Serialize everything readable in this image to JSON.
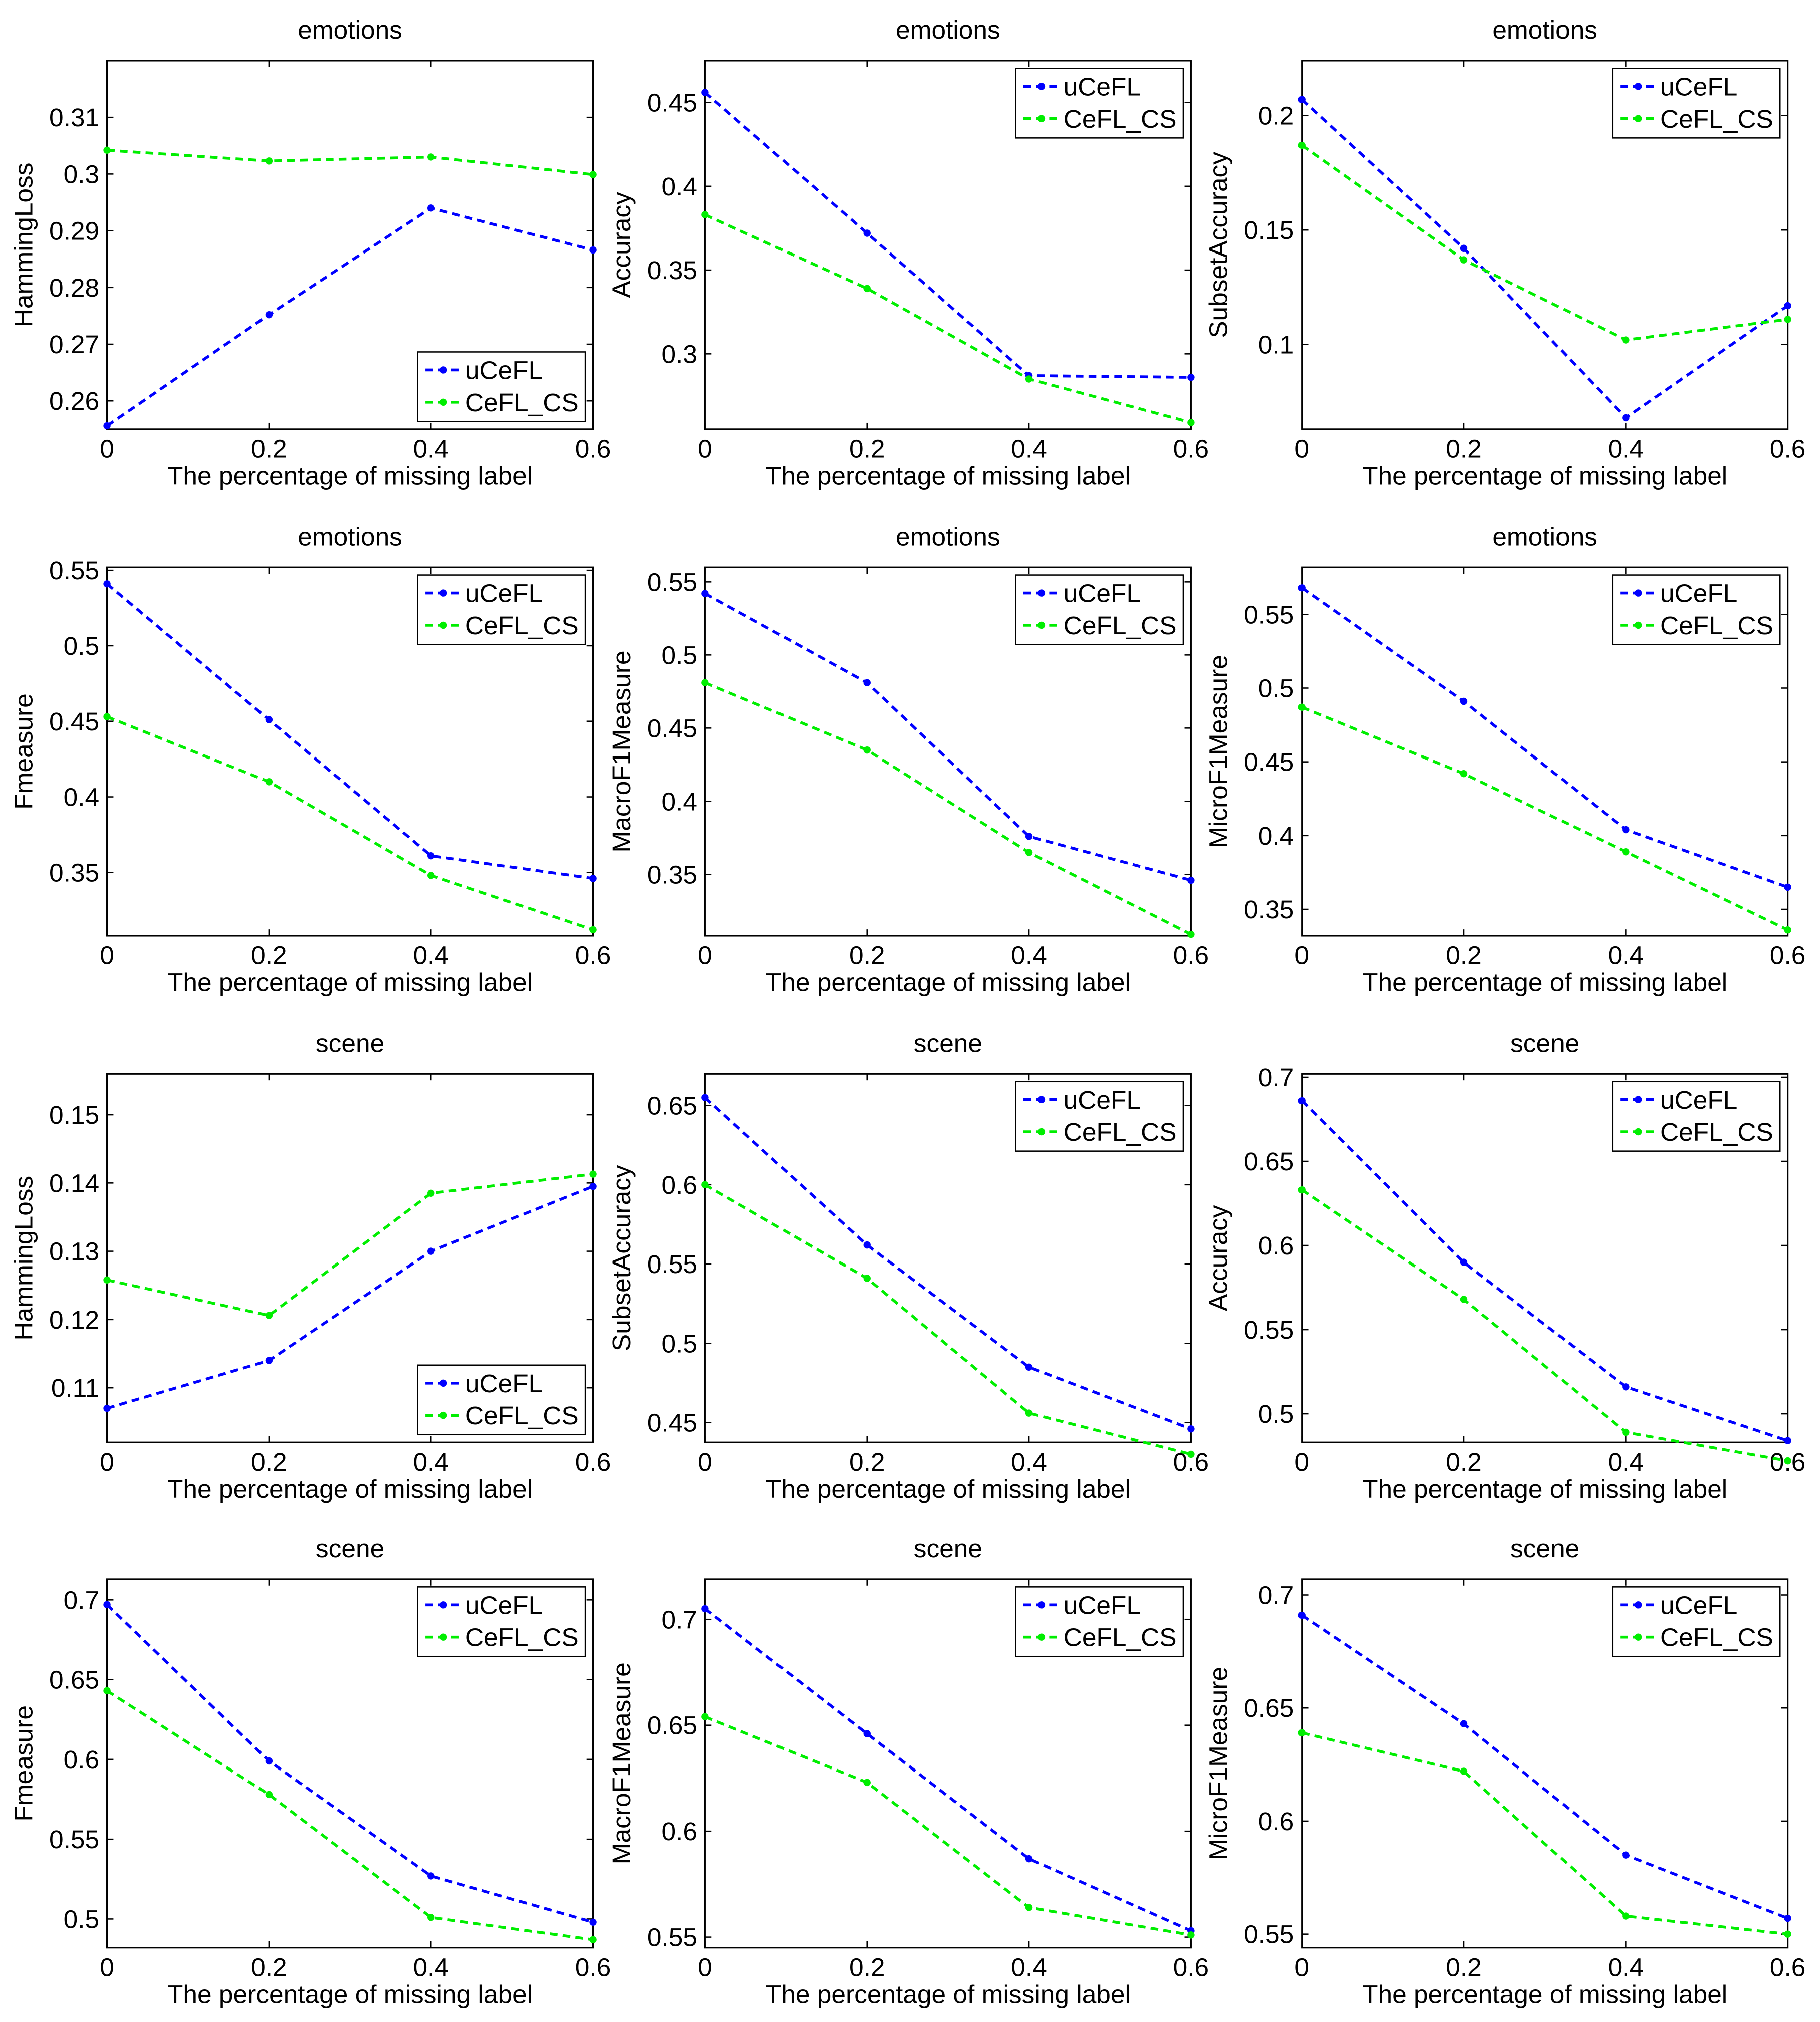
{
  "chart_data": [
    {
      "type": "line",
      "title": "emotions",
      "xlabel": "The percentage of missing label",
      "ylabel": "HammingLoss",
      "x": [
        0,
        0.2,
        0.4,
        0.6
      ],
      "xlim": [
        0,
        0.6
      ],
      "xticks": [
        0,
        0.2,
        0.4,
        0.6
      ],
      "ylim": [
        0.255,
        0.32
      ],
      "yticks": [
        0.26,
        0.27,
        0.28,
        0.29,
        0.3,
        0.31
      ],
      "legend": "lower right",
      "series": [
        {
          "name": "uCeFL",
          "color": "#0000ff",
          "values": [
            0.2556,
            0.2752,
            0.294,
            0.2866
          ]
        },
        {
          "name": "CeFL_CS",
          "color": "#00ee00",
          "values": [
            0.3042,
            0.3023,
            0.303,
            0.2999
          ]
        }
      ]
    },
    {
      "type": "line",
      "title": "emotions",
      "xlabel": "The percentage of missing label",
      "ylabel": "Accuracy",
      "x": [
        0,
        0.2,
        0.4,
        0.6
      ],
      "xlim": [
        0,
        0.6
      ],
      "xticks": [
        0,
        0.2,
        0.4,
        0.6
      ],
      "ylim": [
        0.255,
        0.475
      ],
      "yticks": [
        0.3,
        0.35,
        0.4,
        0.45
      ],
      "legend": "upper right",
      "series": [
        {
          "name": "uCeFL",
          "color": "#0000ff",
          "values": [
            0.456,
            0.372,
            0.287,
            0.286
          ]
        },
        {
          "name": "CeFL_CS",
          "color": "#00ee00",
          "values": [
            0.383,
            0.339,
            0.285,
            0.259
          ]
        }
      ]
    },
    {
      "type": "line",
      "title": "emotions",
      "xlabel": "The percentage of missing label",
      "ylabel": "SubsetAccuracy",
      "x": [
        0,
        0.2,
        0.4,
        0.6
      ],
      "xlim": [
        0,
        0.6
      ],
      "xticks": [
        0,
        0.2,
        0.4,
        0.6
      ],
      "ylim": [
        0.063,
        0.224
      ],
      "yticks": [
        0.1,
        0.15,
        0.2
      ],
      "legend": "upper right",
      "series": [
        {
          "name": "uCeFL",
          "color": "#0000ff",
          "values": [
            0.207,
            0.142,
            0.068,
            0.117
          ]
        },
        {
          "name": "CeFL_CS",
          "color": "#00ee00",
          "values": [
            0.187,
            0.137,
            0.102,
            0.111
          ]
        }
      ]
    },
    {
      "type": "line",
      "title": "emotions",
      "xlabel": "The percentage of missing label",
      "ylabel": "Fmeasure",
      "x": [
        0,
        0.2,
        0.4,
        0.6
      ],
      "xlim": [
        0,
        0.6
      ],
      "xticks": [
        0,
        0.2,
        0.4,
        0.6
      ],
      "ylim": [
        0.308,
        0.552
      ],
      "yticks": [
        0.35,
        0.4,
        0.45,
        0.5,
        0.55
      ],
      "legend": "upper right",
      "series": [
        {
          "name": "uCeFL",
          "color": "#0000ff",
          "values": [
            0.541,
            0.451,
            0.361,
            0.346
          ]
        },
        {
          "name": "CeFL_CS",
          "color": "#00ee00",
          "values": [
            0.453,
            0.41,
            0.348,
            0.312
          ]
        }
      ]
    },
    {
      "type": "line",
      "title": "emotions",
      "xlabel": "The percentage of missing label",
      "ylabel": "MacroF1Measure",
      "x": [
        0,
        0.2,
        0.4,
        0.6
      ],
      "xlim": [
        0,
        0.6
      ],
      "xticks": [
        0,
        0.2,
        0.4,
        0.6
      ],
      "ylim": [
        0.308,
        0.56
      ],
      "yticks": [
        0.35,
        0.4,
        0.45,
        0.5,
        0.55
      ],
      "legend": "upper right",
      "series": [
        {
          "name": "uCeFL",
          "color": "#0000ff",
          "values": [
            0.542,
            0.481,
            0.376,
            0.346
          ]
        },
        {
          "name": "CeFL_CS",
          "color": "#00ee00",
          "values": [
            0.481,
            0.435,
            0.365,
            0.309
          ]
        }
      ]
    },
    {
      "type": "line",
      "title": "emotions",
      "xlabel": "The percentage of missing label",
      "ylabel": "MicroF1Measure",
      "x": [
        0,
        0.2,
        0.4,
        0.6
      ],
      "xlim": [
        0,
        0.6
      ],
      "xticks": [
        0,
        0.2,
        0.4,
        0.6
      ],
      "ylim": [
        0.332,
        0.582
      ],
      "yticks": [
        0.35,
        0.4,
        0.45,
        0.5,
        0.55
      ],
      "legend": "upper right",
      "series": [
        {
          "name": "uCeFL",
          "color": "#0000ff",
          "values": [
            0.568,
            0.491,
            0.404,
            0.365
          ]
        },
        {
          "name": "CeFL_CS",
          "color": "#00ee00",
          "values": [
            0.487,
            0.442,
            0.389,
            0.336
          ]
        }
      ]
    },
    {
      "type": "line",
      "title": "scene",
      "xlabel": "The percentage of missing label",
      "ylabel": "HammingLoss",
      "x": [
        0,
        0.2,
        0.4,
        0.6
      ],
      "xlim": [
        0,
        0.6
      ],
      "xticks": [
        0,
        0.2,
        0.4,
        0.6
      ],
      "ylim": [
        0.102,
        0.156
      ],
      "yticks": [
        0.11,
        0.12,
        0.13,
        0.14,
        0.15
      ],
      "legend": "lower right",
      "series": [
        {
          "name": "uCeFL",
          "color": "#0000ff",
          "values": [
            0.107,
            0.114,
            0.13,
            0.1395
          ]
        },
        {
          "name": "CeFL_CS",
          "color": "#00ee00",
          "values": [
            0.1258,
            0.1206,
            0.1385,
            0.1413
          ]
        }
      ]
    },
    {
      "type": "line",
      "title": "scene",
      "xlabel": "The percentage of missing label",
      "ylabel": "SubsetAccuracy",
      "x": [
        0,
        0.2,
        0.4,
        0.6
      ],
      "xlim": [
        0,
        0.6
      ],
      "xticks": [
        0,
        0.2,
        0.4,
        0.6
      ],
      "ylim": [
        0.4375,
        0.67
      ],
      "yticks": [
        0.45,
        0.5,
        0.55,
        0.6,
        0.65
      ],
      "legend": "upper right",
      "series": [
        {
          "name": "uCeFL",
          "color": "#0000ff",
          "values": [
            0.655,
            0.562,
            0.485,
            0.446
          ]
        },
        {
          "name": "CeFL_CS",
          "color": "#00ee00",
          "values": [
            0.6,
            0.541,
            0.456,
            0.43
          ]
        }
      ]
    },
    {
      "type": "line",
      "title": "scene",
      "xlabel": "The percentage of missing label",
      "ylabel": "Accuracy",
      "x": [
        0,
        0.2,
        0.4,
        0.6
      ],
      "xlim": [
        0,
        0.6
      ],
      "xticks": [
        0,
        0.2,
        0.4,
        0.6
      ],
      "ylim": [
        0.483,
        0.702
      ],
      "yticks": [
        0.5,
        0.55,
        0.6,
        0.65,
        0.7
      ],
      "legend": "upper right",
      "series": [
        {
          "name": "uCeFL",
          "color": "#0000ff",
          "values": [
            0.686,
            0.59,
            0.516,
            0.484
          ]
        },
        {
          "name": "CeFL_CS",
          "color": "#00ee00",
          "values": [
            0.633,
            0.568,
            0.489,
            0.472
          ]
        }
      ]
    },
    {
      "type": "line",
      "title": "scene",
      "xlabel": "The percentage of missing label",
      "ylabel": "Fmeasure",
      "x": [
        0,
        0.2,
        0.4,
        0.6
      ],
      "xlim": [
        0,
        0.6
      ],
      "xticks": [
        0,
        0.2,
        0.4,
        0.6
      ],
      "ylim": [
        0.482,
        0.713
      ],
      "yticks": [
        0.5,
        0.55,
        0.6,
        0.65,
        0.7
      ],
      "legend": "upper right",
      "series": [
        {
          "name": "uCeFL",
          "color": "#0000ff",
          "values": [
            0.697,
            0.599,
            0.527,
            0.498
          ]
        },
        {
          "name": "CeFL_CS",
          "color": "#00ee00",
          "values": [
            0.643,
            0.578,
            0.501,
            0.487
          ]
        }
      ]
    },
    {
      "type": "line",
      "title": "scene",
      "xlabel": "The percentage of missing label",
      "ylabel": "MacroF1Measure",
      "x": [
        0,
        0.2,
        0.4,
        0.6
      ],
      "xlim": [
        0,
        0.6
      ],
      "xticks": [
        0,
        0.2,
        0.4,
        0.6
      ],
      "ylim": [
        0.545,
        0.719
      ],
      "yticks": [
        0.55,
        0.6,
        0.65,
        0.7
      ],
      "legend": "upper right",
      "series": [
        {
          "name": "uCeFL",
          "color": "#0000ff",
          "values": [
            0.705,
            0.646,
            0.587,
            0.553
          ]
        },
        {
          "name": "CeFL_CS",
          "color": "#00ee00",
          "values": [
            0.654,
            0.623,
            0.564,
            0.551
          ]
        }
      ]
    },
    {
      "type": "line",
      "title": "scene",
      "xlabel": "The percentage of missing label",
      "ylabel": "MicroF1Measure",
      "x": [
        0,
        0.2,
        0.4,
        0.6
      ],
      "xlim": [
        0,
        0.6
      ],
      "xticks": [
        0,
        0.2,
        0.4,
        0.6
      ],
      "ylim": [
        0.544,
        0.707
      ],
      "yticks": [
        0.55,
        0.6,
        0.65,
        0.7
      ],
      "legend": "upper right",
      "series": [
        {
          "name": "uCeFL",
          "color": "#0000ff",
          "values": [
            0.691,
            0.643,
            0.585,
            0.557
          ]
        },
        {
          "name": "CeFL_CS",
          "color": "#00ee00",
          "values": [
            0.639,
            0.622,
            0.558,
            0.55
          ]
        }
      ]
    }
  ]
}
